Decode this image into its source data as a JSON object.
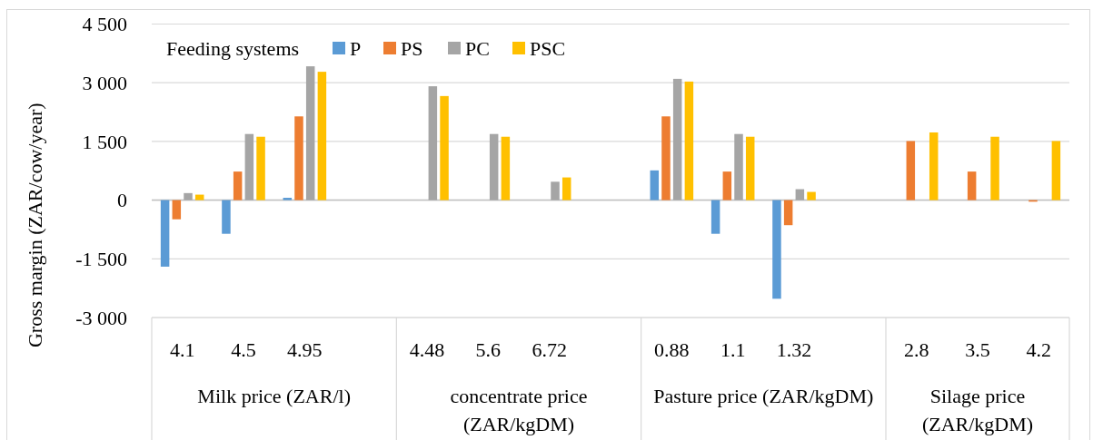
{
  "chart_data": {
    "type": "bar",
    "ylabel": "Gross margin  (ZAR/cow/year)",
    "legend_title": "Feeding systems",
    "categories": [
      "4.1",
      "4.5",
      "4.95",
      null,
      "4.48",
      "5.6",
      "6.72",
      null,
      "0.88",
      "1.1",
      "1.32",
      null,
      "2.8",
      "3.5",
      "4.2"
    ],
    "annotations": [
      "Milk price (ZAR/l)",
      "concentrate price (ZAR/kgDM)",
      "Pasture price (ZAR/kgDM)",
      "Silage price (ZAR/kgDM)"
    ],
    "series": [
      {
        "name": "P",
        "color": "#5b9bd5",
        "values": [
          -1700,
          -860,
          60,
          null,
          null,
          null,
          null,
          null,
          760,
          -860,
          -2520,
          null,
          null,
          null,
          null
        ]
      },
      {
        "name": "PS",
        "color": "#ed7d31",
        "values": [
          -490,
          730,
          2140,
          null,
          null,
          null,
          null,
          null,
          2140,
          730,
          -640,
          null,
          1510,
          730,
          -40
        ]
      },
      {
        "name": "PC",
        "color": "#a5a5a5",
        "values": [
          180,
          1690,
          3420,
          null,
          2910,
          1690,
          470,
          null,
          3100,
          1690,
          280,
          null,
          null,
          null,
          null
        ]
      },
      {
        "name": "PSC",
        "color": "#ffc000",
        "values": [
          140,
          1620,
          3280,
          null,
          2660,
          1620,
          580,
          null,
          3030,
          1620,
          210,
          null,
          1730,
          1620,
          1510
        ]
      }
    ],
    "ylim": [
      -3000,
      4500
    ],
    "yticks": [
      {
        "value": -3000,
        "label": "-3 000"
      },
      {
        "value": -1500,
        "label": "-1 500"
      },
      0,
      {
        "value": 1500,
        "label": "1 500"
      },
      {
        "value": 3000,
        "label": "3 000"
      },
      {
        "value": 4500,
        "label": "4 500"
      }
    ],
    "grid": "y",
    "legend": "top left"
  }
}
